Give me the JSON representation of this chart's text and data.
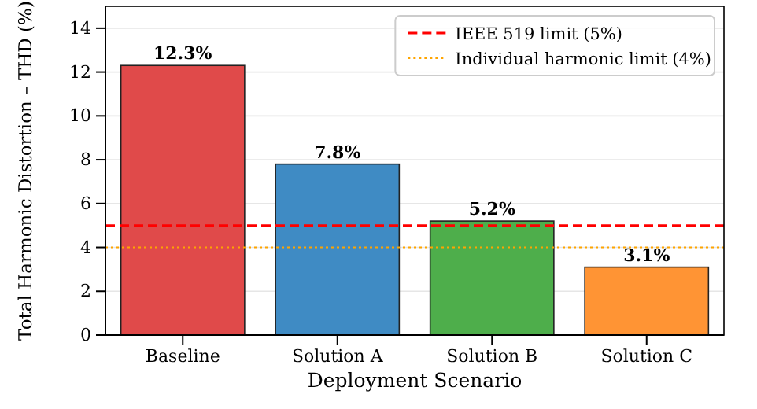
{
  "chart_data": {
    "type": "bar",
    "xlabel": "Deployment Scenario",
    "ylabel": "Total Harmonic Distortion – THD (%)",
    "categories": [
      "Baseline",
      "Solution A",
      "Solution B",
      "Solution C"
    ],
    "values": [
      12.3,
      7.8,
      5.2,
      3.1
    ],
    "colors": [
      "#e04a4a",
      "#3f8bc4",
      "#4eae4b",
      "#ff9434"
    ],
    "value_labels": [
      "12.3%",
      "7.8%",
      "5.2%",
      "3.1%"
    ],
    "ylim": [
      0,
      15
    ],
    "yticks": [
      0,
      2,
      4,
      6,
      8,
      10,
      12,
      14
    ],
    "grid": "y",
    "legend": "top right",
    "ref_lines": [
      {
        "axis": "y",
        "value": 5,
        "label": "IEEE 519 limit (5%)",
        "color": "#ff0000",
        "line_style": "dashed"
      },
      {
        "axis": "y",
        "value": 4,
        "label": "Individual harmonic limit (4%)",
        "color": "#ffa500",
        "line_style": "dotted"
      }
    ]
  }
}
